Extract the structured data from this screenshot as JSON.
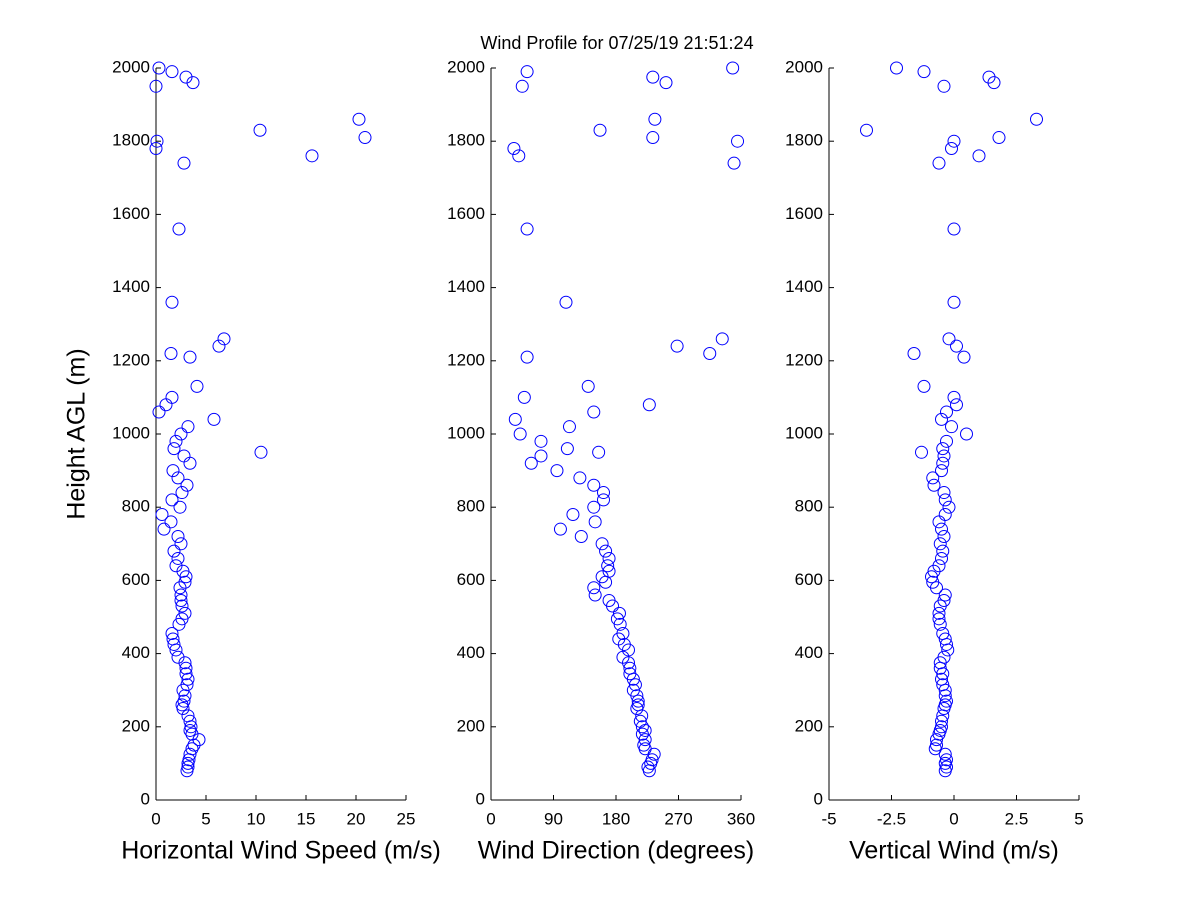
{
  "chart_data": [
    {
      "type": "scatter",
      "title": "Wind Profile for  07/25/19 21:51:24",
      "ylabel": "Height AGL (m)",
      "xlabel": "Horizontal Wind Speed (m/s)",
      "color": "#0000ff",
      "xlim": [
        0,
        25
      ],
      "xticks": [
        0,
        5,
        10,
        15,
        20,
        25
      ],
      "ylim": [
        0,
        2000
      ],
      "yticks": [
        0,
        200,
        400,
        600,
        800,
        1000,
        1200,
        1400,
        1600,
        1800,
        2000
      ],
      "x": [
        3.1,
        3.2,
        3.2,
        3.3,
        3.4,
        3.6,
        3.8,
        4.3,
        3.6,
        3.4,
        3.5,
        3.4,
        3.2,
        2.7,
        2.6,
        2.8,
        2.9,
        2.7,
        3.1,
        3.2,
        3.0,
        3.0,
        2.9,
        2.2,
        2.0,
        1.8,
        1.7,
        1.6,
        2.3,
        2.6,
        2.9,
        2.6,
        2.5,
        2.5,
        2.4,
        2.9,
        3.0,
        2.7,
        2.0,
        2.2,
        1.8,
        2.5,
        2.2,
        0.8,
        1.5,
        0.6,
        2.4,
        1.6,
        2.6,
        3.1,
        2.2,
        1.7,
        3.4,
        2.8,
        10.5,
        1.8,
        2.0,
        2.5,
        3.2,
        5.8,
        0.3,
        1.0,
        1.6,
        4.1,
        3.4,
        1.5,
        6.3,
        6.8,
        1.6,
        2.3,
        2.8,
        15.6,
        0.0,
        0.1,
        20.9,
        10.4,
        20.3,
        0.0,
        3.7,
        3.0,
        1.6,
        0.3
      ],
      "y": [
        80,
        90,
        100,
        110,
        125,
        140,
        150,
        165,
        180,
        190,
        200,
        215,
        230,
        250,
        260,
        270,
        285,
        300,
        315,
        330,
        345,
        360,
        375,
        390,
        410,
        425,
        440,
        455,
        480,
        495,
        510,
        530,
        545,
        560,
        580,
        595,
        610,
        625,
        640,
        660,
        680,
        700,
        720,
        740,
        760,
        780,
        800,
        820,
        840,
        860,
        880,
        900,
        920,
        940,
        950,
        960,
        980,
        1000,
        1020,
        1040,
        1060,
        1080,
        1100,
        1130,
        1210,
        1220,
        1240,
        1260,
        1360,
        1560,
        1740,
        1760,
        1780,
        1800,
        1810,
        1830,
        1860,
        1950,
        1960,
        1975,
        1990,
        2000
      ]
    },
    {
      "type": "scatter",
      "xlabel": "Wind Direction (degrees)",
      "color": "#0000ff",
      "xlim": [
        0,
        360
      ],
      "xticks": [
        0,
        90,
        180,
        270,
        360
      ],
      "ylim": [
        0,
        2000
      ],
      "yticks": [
        0,
        200,
        400,
        600,
        800,
        1000,
        1200,
        1400,
        1600,
        1800,
        2000
      ],
      "x": [
        228,
        226,
        230,
        232,
        235,
        222,
        220,
        222,
        218,
        222,
        218,
        215,
        217,
        210,
        212,
        212,
        210,
        205,
        208,
        205,
        200,
        200,
        198,
        190,
        198,
        192,
        184,
        190,
        186,
        182,
        185,
        175,
        170,
        150,
        148,
        165,
        160,
        170,
        168,
        170,
        165,
        160,
        130,
        100,
        150,
        118,
        148,
        162,
        162,
        148,
        128,
        95,
        58,
        72,
        155,
        110,
        72,
        42,
        113,
        35,
        148,
        228,
        48,
        140,
        52,
        315,
        268,
        333,
        108,
        52,
        350,
        40,
        33,
        355,
        233,
        157,
        236,
        45,
        252,
        233,
        52,
        348
      ],
      "y": [
        80,
        90,
        100,
        110,
        125,
        140,
        150,
        165,
        180,
        190,
        200,
        215,
        230,
        250,
        260,
        270,
        285,
        300,
        315,
        330,
        345,
        360,
        375,
        390,
        410,
        425,
        440,
        455,
        480,
        495,
        510,
        530,
        545,
        560,
        580,
        595,
        610,
        625,
        640,
        660,
        680,
        700,
        720,
        740,
        760,
        780,
        800,
        820,
        840,
        860,
        880,
        900,
        920,
        940,
        950,
        960,
        980,
        1000,
        1020,
        1040,
        1060,
        1080,
        1100,
        1130,
        1210,
        1220,
        1240,
        1260,
        1360,
        1560,
        1740,
        1760,
        1780,
        1800,
        1810,
        1830,
        1860,
        1950,
        1960,
        1975,
        1990,
        2000
      ]
    },
    {
      "type": "scatter",
      "xlabel": "Vertical Wind (m/s)",
      "color": "#0000ff",
      "xlim": [
        -5,
        5
      ],
      "xticks": [
        -5,
        -2.5,
        0,
        2.5,
        5
      ],
      "ylim": [
        0,
        2000
      ],
      "yticks": [
        0,
        200,
        400,
        600,
        800,
        1000,
        1200,
        1400,
        1600,
        1800,
        2000
      ],
      "x": [
        -0.35,
        -0.3,
        -0.35,
        -0.3,
        -0.35,
        -0.75,
        -0.7,
        -0.7,
        -0.6,
        -0.55,
        -0.5,
        -0.5,
        -0.45,
        -0.4,
        -0.35,
        -0.3,
        -0.35,
        -0.35,
        -0.45,
        -0.5,
        -0.45,
        -0.55,
        -0.55,
        -0.4,
        -0.25,
        -0.3,
        -0.35,
        -0.45,
        -0.55,
        -0.6,
        -0.6,
        -0.55,
        -0.4,
        -0.35,
        -0.7,
        -0.85,
        -0.9,
        -0.8,
        -0.6,
        -0.5,
        -0.45,
        -0.55,
        -0.4,
        -0.5,
        -0.6,
        -0.35,
        -0.2,
        -0.35,
        -0.4,
        -0.8,
        -0.85,
        -0.5,
        -0.45,
        -0.4,
        -1.3,
        -0.45,
        -0.3,
        0.5,
        -0.1,
        -0.5,
        -0.3,
        0.1,
        0.0,
        -1.2,
        0.4,
        -1.6,
        0.1,
        -0.2,
        0.0,
        0.0,
        -0.6,
        1.0,
        -0.1,
        0.0,
        1.8,
        -3.5,
        3.3,
        -0.4,
        1.6,
        1.4,
        -1.2,
        -2.3
      ],
      "y": [
        80,
        90,
        100,
        110,
        125,
        140,
        150,
        165,
        180,
        190,
        200,
        215,
        230,
        250,
        260,
        270,
        285,
        300,
        315,
        330,
        345,
        360,
        375,
        390,
        410,
        425,
        440,
        455,
        480,
        495,
        510,
        530,
        545,
        560,
        580,
        595,
        610,
        625,
        640,
        660,
        680,
        700,
        720,
        740,
        760,
        780,
        800,
        820,
        840,
        860,
        880,
        900,
        920,
        940,
        950,
        960,
        980,
        1000,
        1020,
        1040,
        1060,
        1080,
        1100,
        1130,
        1210,
        1220,
        1240,
        1260,
        1360,
        1560,
        1740,
        1760,
        1780,
        1800,
        1810,
        1830,
        1860,
        1950,
        1960,
        1975,
        1990,
        2000
      ]
    }
  ]
}
